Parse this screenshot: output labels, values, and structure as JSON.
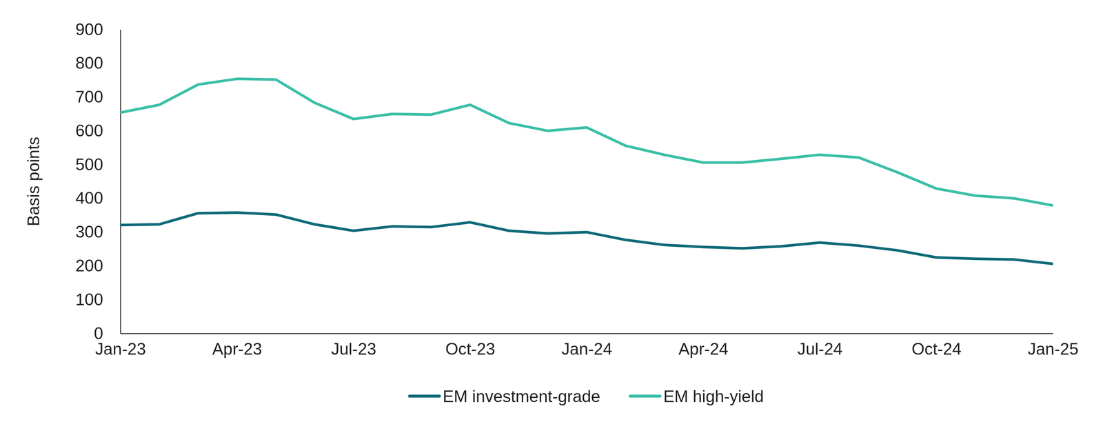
{
  "chart_data": {
    "type": "line",
    "y_label": "Basis points",
    "categories": [
      "Jan-23",
      null,
      null,
      "Apr-23",
      null,
      null,
      "Jul-23",
      null,
      null,
      "Oct-23",
      null,
      null,
      "Jan-24",
      null,
      null,
      "Apr-24",
      null,
      null,
      "Jul-24",
      null,
      null,
      "Oct-24",
      null,
      null,
      "Jan-25"
    ],
    "series": [
      {
        "name": "EM investment-grade",
        "color": "#0f6a78",
        "values": [
          321,
          323,
          356,
          358,
          352,
          323,
          304,
          317,
          315,
          329,
          304,
          296,
          300,
          277,
          262,
          256,
          252,
          258,
          269,
          260,
          246,
          225,
          221,
          219,
          206
        ]
      },
      {
        "name": "EM high-yield",
        "color": "#3bbfa6",
        "values": [
          654,
          677,
          737,
          754,
          752,
          683,
          635,
          650,
          648,
          677,
          623,
          600,
          610,
          556,
          529,
          506,
          506,
          517,
          529,
          521,
          477,
          429,
          408,
          400,
          379
        ]
      }
    ],
    "ylim": [
      0,
      900
    ],
    "yticks": [
      0,
      100,
      200,
      300,
      400,
      500,
      600,
      700,
      800,
      900
    ],
    "grid": false,
    "legend": "bottom"
  }
}
